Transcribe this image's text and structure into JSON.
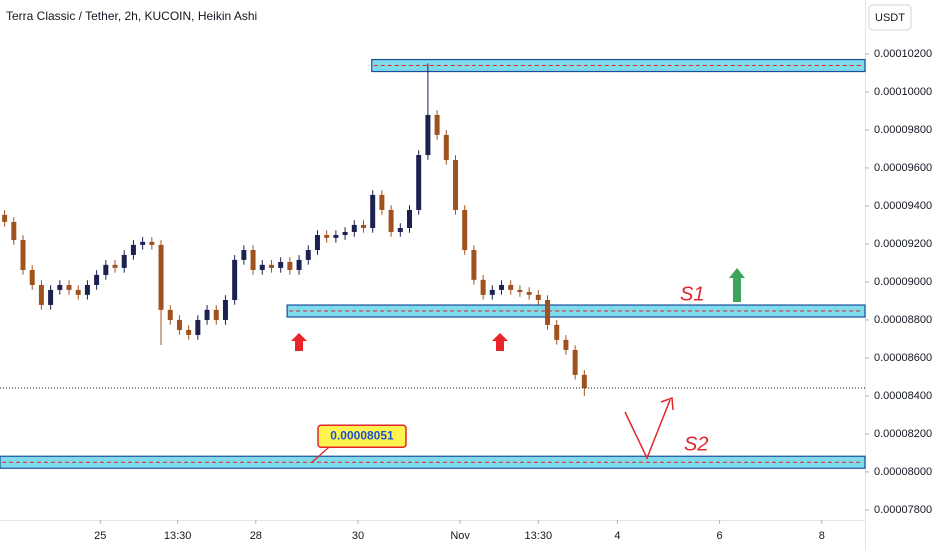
{
  "chart_data": {
    "type": "candlestick",
    "title": "Terra Classic / Tether, 2h, KUCOIN, Heikin Ashi",
    "currency": "USDT",
    "up_color": "#1c2150",
    "down_color": "#a0521e",
    "xlim": [
      0,
      94
    ],
    "xticks": [
      {
        "value": 10.9,
        "label": "25"
      },
      {
        "value": 19.3,
        "label": "13:30"
      },
      {
        "value": 27.8,
        "label": "28"
      },
      {
        "value": 38.9,
        "label": "30"
      },
      {
        "value": 50,
        "label": "Nov"
      },
      {
        "value": 58.5,
        "label": "13:30"
      },
      {
        "value": 67.1,
        "label": "4"
      },
      {
        "value": 78.2,
        "label": "6"
      },
      {
        "value": 89.3,
        "label": "8"
      }
    ],
    "ylim": [
      7.747e-05,
      0.00010484
    ],
    "yticks": [
      {
        "value": 0.000102,
        "label": "0.00010200"
      },
      {
        "value": 0.0001,
        "label": "0.00010000"
      },
      {
        "value": 9.8e-05,
        "label": "0.00009800"
      },
      {
        "value": 9.6e-05,
        "label": "0.00009600"
      },
      {
        "value": 9.4e-05,
        "label": "0.00009400"
      },
      {
        "value": 9.2e-05,
        "label": "0.00009200"
      },
      {
        "value": 9e-05,
        "label": "0.00009000"
      },
      {
        "value": 8.8e-05,
        "label": "0.00008800"
      },
      {
        "value": 8.6e-05,
        "label": "0.00008600"
      },
      {
        "value": 8.4e-05,
        "label": "0.00008400"
      },
      {
        "value": 8.2e-05,
        "label": "0.00008200"
      },
      {
        "value": 8e-05,
        "label": "0.00008000"
      },
      {
        "value": 7.8e-05,
        "label": "0.00007800"
      }
    ],
    "x": [
      0,
      1,
      2,
      3,
      4,
      5,
      6,
      7,
      8,
      9,
      10,
      11,
      12,
      13,
      14,
      15,
      16,
      17,
      18,
      19,
      20,
      21,
      22,
      23,
      24,
      25,
      26,
      27,
      28,
      29,
      30,
      31,
      32,
      33,
      34,
      35,
      36,
      37,
      38,
      39,
      40,
      41,
      42,
      43,
      44,
      45,
      46,
      47,
      48,
      49,
      50,
      51,
      52,
      53,
      54,
      55,
      56,
      57,
      58,
      59,
      60,
      61,
      62,
      63
    ],
    "open": [
      9.353e-05,
      9.316e-05,
      9.221e-05,
      9.063e-05,
      8.984e-05,
      8.879e-05,
      8.958e-05,
      8.984e-05,
      8.958e-05,
      8.932e-05,
      8.984e-05,
      9.037e-05,
      9.09e-05,
      9.074e-05,
      9.142e-05,
      9.195e-05,
      9.211e-05,
      9.195e-05,
      8.853e-05,
      8.8e-05,
      8.747e-05,
      8.721e-05,
      8.8e-05,
      8.853e-05,
      8.8e-05,
      8.905e-05,
      9.116e-05,
      9.168e-05,
      9.063e-05,
      9.09e-05,
      9.074e-05,
      9.105e-05,
      9.063e-05,
      9.116e-05,
      9.168e-05,
      9.247e-05,
      9.232e-05,
      9.247e-05,
      9.263e-05,
      9.3e-05,
      9.284e-05,
      9.458e-05,
      9.379e-05,
      9.263e-05,
      9.284e-05,
      9.379e-05,
      9.668e-05,
      9.879e-05,
      9.774e-05,
      9.642e-05,
      9.379e-05,
      9.168e-05,
      9.011e-05,
      8.932e-05,
      8.958e-05,
      8.984e-05,
      8.958e-05,
      8.947e-05,
      8.932e-05,
      8.905e-05,
      8.774e-05,
      8.695e-05,
      8.642e-05,
      8.511e-05
    ],
    "high": [
      9.378e-05,
      9.341e-05,
      9.246e-05,
      9.088e-05,
      9.009e-05,
      8.983e-05,
      9.009e-05,
      9.009e-05,
      8.983e-05,
      9.009e-05,
      9.062e-05,
      9.115e-05,
      9.115e-05,
      9.167e-05,
      9.22e-05,
      9.236e-05,
      9.236e-05,
      9.22e-05,
      8.878e-05,
      8.825e-05,
      8.772e-05,
      8.825e-05,
      8.878e-05,
      8.878e-05,
      8.93e-05,
      9.141e-05,
      9.193e-05,
      9.193e-05,
      9.115e-05,
      9.115e-05,
      9.13e-05,
      9.13e-05,
      9.141e-05,
      9.193e-05,
      9.272e-05,
      9.272e-05,
      9.272e-05,
      9.288e-05,
      9.325e-05,
      9.325e-05,
      9.483e-05,
      9.483e-05,
      9.404e-05,
      9.309e-05,
      9.404e-05,
      9.693e-05,
      0.0001015,
      9.904e-05,
      9.799e-05,
      9.667e-05,
      9.404e-05,
      9.193e-05,
      9.036e-05,
      8.983e-05,
      9.009e-05,
      9.009e-05,
      8.983e-05,
      8.972e-05,
      8.957e-05,
      8.93e-05,
      8.799e-05,
      8.72e-05,
      8.667e-05,
      8.536e-05
    ],
    "low": [
      9.291e-05,
      9.196e-05,
      9.038e-05,
      8.959e-05,
      8.854e-05,
      8.854e-05,
      8.933e-05,
      8.933e-05,
      8.907e-05,
      8.907e-05,
      8.959e-05,
      9.012e-05,
      9.049e-05,
      9.049e-05,
      9.117e-05,
      9.17e-05,
      9.17e-05,
      8.668e-05,
      8.775e-05,
      8.722e-05,
      8.696e-05,
      8.696e-05,
      8.775e-05,
      8.775e-05,
      8.775e-05,
      8.88e-05,
      9.091e-05,
      9.038e-05,
      9.038e-05,
      9.049e-05,
      9.049e-05,
      9.038e-05,
      9.038e-05,
      9.091e-05,
      9.143e-05,
      9.207e-05,
      9.207e-05,
      9.222e-05,
      9.238e-05,
      9.259e-05,
      9.259e-05,
      9.354e-05,
      9.238e-05,
      9.238e-05,
      9.259e-05,
      9.354e-05,
      9.643e-05,
      9.749e-05,
      9.617e-05,
      9.354e-05,
      9.143e-05,
      8.986e-05,
      8.907e-05,
      8.907e-05,
      8.933e-05,
      8.933e-05,
      8.922e-05,
      8.907e-05,
      8.88e-05,
      8.749e-05,
      8.67e-05,
      8.617e-05,
      8.486e-05,
      8.4e-05
    ],
    "close": [
      9.316e-05,
      9.221e-05,
      9.063e-05,
      8.984e-05,
      8.879e-05,
      8.958e-05,
      8.984e-05,
      8.958e-05,
      8.932e-05,
      8.984e-05,
      9.037e-05,
      9.09e-05,
      9.074e-05,
      9.142e-05,
      9.195e-05,
      9.211e-05,
      9.195e-05,
      8.853e-05,
      8.8e-05,
      8.747e-05,
      8.721e-05,
      8.8e-05,
      8.853e-05,
      8.8e-05,
      8.905e-05,
      9.116e-05,
      9.168e-05,
      9.063e-05,
      9.09e-05,
      9.074e-05,
      9.105e-05,
      9.063e-05,
      9.116e-05,
      9.168e-05,
      9.247e-05,
      9.232e-05,
      9.247e-05,
      9.263e-05,
      9.3e-05,
      9.284e-05,
      9.458e-05,
      9.379e-05,
      9.263e-05,
      9.284e-05,
      9.379e-05,
      9.668e-05,
      9.879e-05,
      9.774e-05,
      9.642e-05,
      9.379e-05,
      9.168e-05,
      9.011e-05,
      8.932e-05,
      8.958e-05,
      8.984e-05,
      8.958e-05,
      8.947e-05,
      8.932e-05,
      8.905e-05,
      8.774e-05,
      8.695e-05,
      8.642e-05,
      8.511e-05,
      8.442e-05
    ],
    "resistance": {
      "value": 0.00010139,
      "x_start": 40.4
    },
    "zones": [
      {
        "name": "S1",
        "value": 8.847e-05,
        "x_start": 31.2
      },
      {
        "name": "S2",
        "value": 8.051e-05,
        "x_start": 0
      }
    ]
  }
}
